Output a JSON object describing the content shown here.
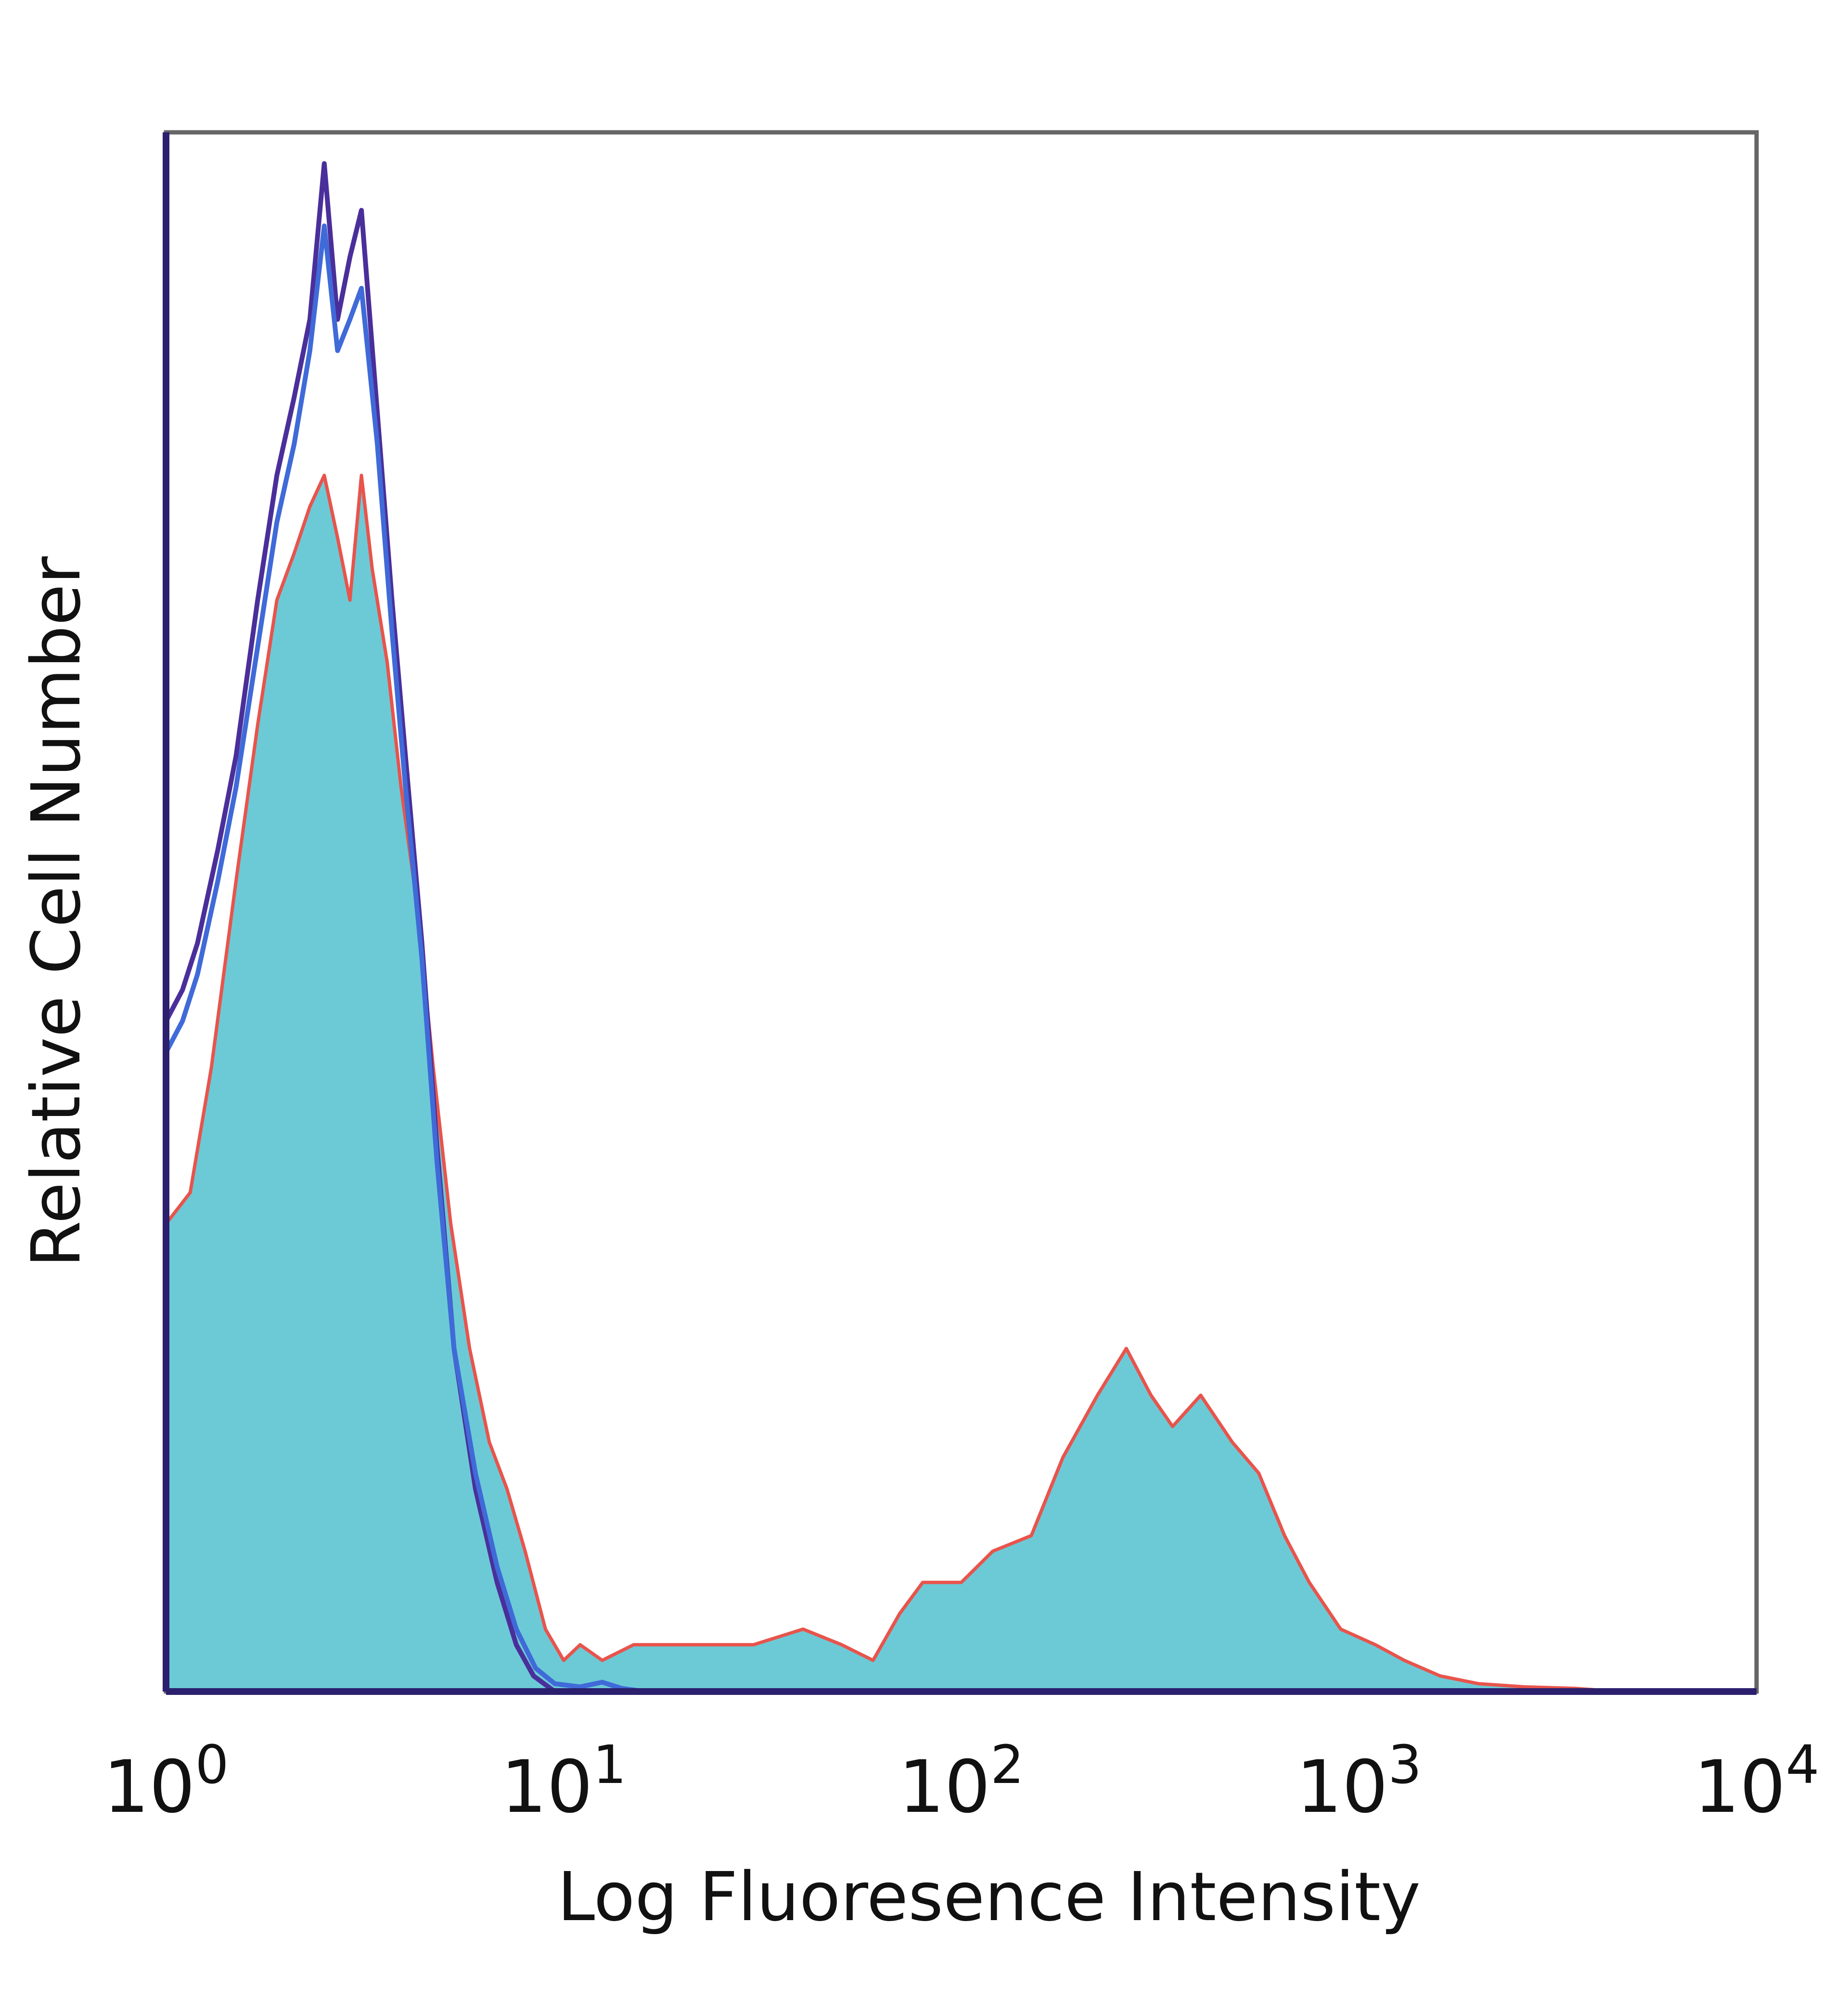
{
  "chart_data": {
    "type": "histogram",
    "xlabel": "Log Fluoresence Intensity",
    "ylabel": "Relative Cell Number",
    "x_scale": "log",
    "xlim": [
      1,
      10000
    ],
    "ylim": [
      0,
      100
    ],
    "x_ticks": [
      {
        "value": 1,
        "base": "10",
        "exp": "0"
      },
      {
        "value": 10,
        "base": "10",
        "exp": "1"
      },
      {
        "value": 100,
        "base": "10",
        "exp": "2"
      },
      {
        "value": 1000,
        "base": "10",
        "exp": "3"
      },
      {
        "value": 10000,
        "base": "10",
        "exp": "4"
      }
    ],
    "grid": false,
    "legend": "none",
    "series": [
      {
        "style": "filled",
        "color": "#6ccad6",
        "stroke": "#e8544c",
        "points": [
          [
            1.0,
            30
          ],
          [
            1.15,
            32
          ],
          [
            1.3,
            40
          ],
          [
            1.5,
            52
          ],
          [
            1.7,
            62
          ],
          [
            1.9,
            70
          ],
          [
            2.1,
            73
          ],
          [
            2.3,
            76
          ],
          [
            2.5,
            78
          ],
          [
            2.7,
            74
          ],
          [
            2.9,
            70
          ],
          [
            3.1,
            78
          ],
          [
            3.3,
            72
          ],
          [
            3.6,
            66
          ],
          [
            3.9,
            58
          ],
          [
            4.3,
            50
          ],
          [
            4.7,
            40
          ],
          [
            5.2,
            30
          ],
          [
            5.8,
            22
          ],
          [
            6.5,
            16
          ],
          [
            7.2,
            13
          ],
          [
            8.0,
            9
          ],
          [
            9.0,
            4
          ],
          [
            10.0,
            2
          ],
          [
            11.0,
            3
          ],
          [
            12.5,
            2
          ],
          [
            15,
            3
          ],
          [
            20,
            3
          ],
          [
            25,
            3
          ],
          [
            30,
            3
          ],
          [
            40,
            4
          ],
          [
            50,
            3
          ],
          [
            60,
            2
          ],
          [
            70,
            5
          ],
          [
            80,
            7
          ],
          [
            100,
            7
          ],
          [
            120,
            9
          ],
          [
            150,
            10
          ],
          [
            180,
            15
          ],
          [
            220,
            19
          ],
          [
            260,
            22
          ],
          [
            300,
            19
          ],
          [
            340,
            17
          ],
          [
            400,
            19
          ],
          [
            480,
            16
          ],
          [
            560,
            14
          ],
          [
            650,
            10
          ],
          [
            750,
            7
          ],
          [
            900,
            4
          ],
          [
            1100,
            3
          ],
          [
            1300,
            2
          ],
          [
            1600,
            1
          ],
          [
            2000,
            0.5
          ],
          [
            2600,
            0.3
          ],
          [
            3500,
            0.2
          ],
          [
            4500,
            0
          ],
          [
            10000,
            0
          ]
        ]
      },
      {
        "style": "line",
        "color": "#4a2f9a",
        "points": [
          [
            1.0,
            43
          ],
          [
            1.1,
            45
          ],
          [
            1.2,
            48
          ],
          [
            1.35,
            54
          ],
          [
            1.5,
            60
          ],
          [
            1.7,
            70
          ],
          [
            1.9,
            78
          ],
          [
            2.1,
            83
          ],
          [
            2.3,
            88
          ],
          [
            2.5,
            98
          ],
          [
            2.7,
            88
          ],
          [
            2.9,
            92
          ],
          [
            3.1,
            95
          ],
          [
            3.4,
            82
          ],
          [
            3.7,
            70
          ],
          [
            4.0,
            60
          ],
          [
            4.4,
            48
          ],
          [
            4.8,
            35
          ],
          [
            5.3,
            22
          ],
          [
            6.0,
            13
          ],
          [
            6.8,
            7
          ],
          [
            7.6,
            3
          ],
          [
            8.4,
            1
          ],
          [
            9.5,
            0
          ],
          [
            10000,
            0
          ]
        ]
      },
      {
        "style": "line",
        "color": "#3f6ad8",
        "points": [
          [
            1.0,
            41
          ],
          [
            1.1,
            43
          ],
          [
            1.2,
            46
          ],
          [
            1.35,
            52
          ],
          [
            1.5,
            58
          ],
          [
            1.7,
            67
          ],
          [
            1.9,
            75
          ],
          [
            2.1,
            80
          ],
          [
            2.3,
            86
          ],
          [
            2.5,
            94
          ],
          [
            2.7,
            86
          ],
          [
            2.9,
            88
          ],
          [
            3.1,
            90
          ],
          [
            3.4,
            80
          ],
          [
            3.7,
            68
          ],
          [
            4.0,
            58
          ],
          [
            4.4,
            47
          ],
          [
            4.8,
            34
          ],
          [
            5.3,
            22
          ],
          [
            6.0,
            14
          ],
          [
            6.8,
            8
          ],
          [
            7.6,
            4
          ],
          [
            8.5,
            1.5
          ],
          [
            9.5,
            0.5
          ],
          [
            11,
            0.3
          ],
          [
            12.5,
            0.6
          ],
          [
            14,
            0.2
          ],
          [
            16,
            0
          ],
          [
            10000,
            0
          ]
        ]
      }
    ]
  }
}
